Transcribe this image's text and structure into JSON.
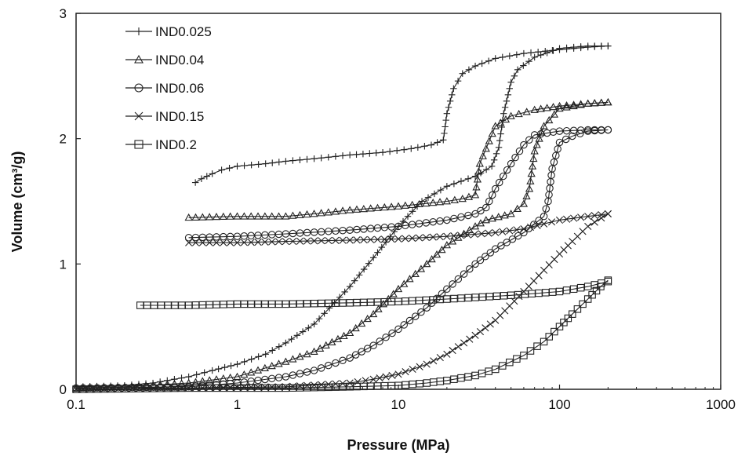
{
  "chart_data": {
    "type": "line",
    "xscale": "log",
    "xlim": [
      0.1,
      1000
    ],
    "ylim": [
      0,
      3
    ],
    "xticks": [
      "0.1",
      "1",
      "10",
      "100",
      "1000"
    ],
    "yticks": [
      "0",
      "1",
      "2",
      "3"
    ],
    "xlabel": "Pressure (MPa)",
    "ylabel": "Volume (cm³/g)",
    "legend_position": "top-left",
    "grid": false,
    "series": [
      {
        "name": "IND0.025",
        "marker": "plus",
        "intrusion": [
          [
            0.55,
            1.65
          ],
          [
            0.6,
            1.68
          ],
          [
            0.7,
            1.72
          ],
          [
            0.8,
            1.75
          ],
          [
            1,
            1.78
          ],
          [
            1.5,
            1.8
          ],
          [
            2,
            1.82
          ],
          [
            3,
            1.84
          ],
          [
            5,
            1.87
          ],
          [
            8,
            1.89
          ],
          [
            12,
            1.92
          ],
          [
            16,
            1.95
          ],
          [
            19,
            1.99
          ],
          [
            20,
            2.2
          ],
          [
            22,
            2.4
          ],
          [
            25,
            2.52
          ],
          [
            30,
            2.58
          ],
          [
            40,
            2.64
          ],
          [
            60,
            2.68
          ],
          [
            100,
            2.71
          ],
          [
            150,
            2.73
          ],
          [
            200,
            2.74
          ]
        ],
        "extrusion": [
          [
            200,
            2.74
          ],
          [
            150,
            2.74
          ],
          [
            100,
            2.72
          ],
          [
            70,
            2.65
          ],
          [
            55,
            2.55
          ],
          [
            50,
            2.45
          ],
          [
            45,
            2.2
          ],
          [
            42,
            1.93
          ],
          [
            38,
            1.78
          ],
          [
            30,
            1.7
          ],
          [
            20,
            1.62
          ],
          [
            14,
            1.5
          ],
          [
            10,
            1.3
          ],
          [
            7,
            1.05
          ],
          [
            5,
            0.82
          ],
          [
            3,
            0.52
          ],
          [
            2,
            0.37
          ],
          [
            1.5,
            0.28
          ],
          [
            1,
            0.2
          ],
          [
            0.7,
            0.15
          ],
          [
            0.5,
            0.1
          ],
          [
            0.3,
            0.05
          ],
          [
            0.2,
            0.03
          ],
          [
            0.1,
            0.02
          ]
        ]
      },
      {
        "name": "IND0.04",
        "marker": "triangle",
        "intrusion": [
          [
            0.5,
            1.37
          ],
          [
            1,
            1.38
          ],
          [
            2,
            1.38
          ],
          [
            3,
            1.4
          ],
          [
            5,
            1.43
          ],
          [
            10,
            1.46
          ],
          [
            20,
            1.5
          ],
          [
            25,
            1.52
          ],
          [
            30,
            1.55
          ],
          [
            32,
            1.8
          ],
          [
            35,
            1.92
          ],
          [
            40,
            2.1
          ],
          [
            50,
            2.18
          ],
          [
            70,
            2.23
          ],
          [
            100,
            2.26
          ],
          [
            150,
            2.28
          ],
          [
            200,
            2.29
          ]
        ],
        "extrusion": [
          [
            200,
            2.29
          ],
          [
            150,
            2.28
          ],
          [
            100,
            2.24
          ],
          [
            80,
            2.1
          ],
          [
            70,
            1.9
          ],
          [
            65,
            1.6
          ],
          [
            60,
            1.48
          ],
          [
            50,
            1.4
          ],
          [
            35,
            1.35
          ],
          [
            30,
            1.3
          ],
          [
            20,
            1.15
          ],
          [
            15,
            1.0
          ],
          [
            10,
            0.8
          ],
          [
            7,
            0.6
          ],
          [
            5,
            0.45
          ],
          [
            3,
            0.3
          ],
          [
            2,
            0.22
          ],
          [
            1,
            0.1
          ],
          [
            0.5,
            0.05
          ],
          [
            0.2,
            0.02
          ],
          [
            0.1,
            0.01
          ]
        ]
      },
      {
        "name": "IND0.06",
        "marker": "circle",
        "intrusion": [
          [
            0.5,
            1.21
          ],
          [
            1,
            1.22
          ],
          [
            2,
            1.24
          ],
          [
            5,
            1.27
          ],
          [
            10,
            1.3
          ],
          [
            20,
            1.35
          ],
          [
            30,
            1.4
          ],
          [
            35,
            1.45
          ],
          [
            40,
            1.6
          ],
          [
            50,
            1.8
          ],
          [
            60,
            1.95
          ],
          [
            70,
            2.03
          ],
          [
            100,
            2.06
          ],
          [
            150,
            2.07
          ],
          [
            200,
            2.07
          ]
        ],
        "extrusion": [
          [
            200,
            2.07
          ],
          [
            150,
            2.06
          ],
          [
            120,
            2.02
          ],
          [
            100,
            1.97
          ],
          [
            90,
            1.76
          ],
          [
            85,
            1.5
          ],
          [
            80,
            1.38
          ],
          [
            60,
            1.25
          ],
          [
            40,
            1.12
          ],
          [
            30,
            1.0
          ],
          [
            20,
            0.8
          ],
          [
            15,
            0.65
          ],
          [
            10,
            0.48
          ],
          [
            7,
            0.35
          ],
          [
            5,
            0.25
          ],
          [
            3,
            0.15
          ],
          [
            2,
            0.1
          ],
          [
            1,
            0.05
          ],
          [
            0.5,
            0.02
          ],
          [
            0.1,
            0.01
          ]
        ]
      },
      {
        "name": "IND0.15",
        "marker": "x",
        "intrusion": [
          [
            0.5,
            1.17
          ],
          [
            1,
            1.17
          ],
          [
            2,
            1.18
          ],
          [
            5,
            1.19
          ],
          [
            10,
            1.2
          ],
          [
            20,
            1.22
          ],
          [
            40,
            1.25
          ],
          [
            60,
            1.28
          ],
          [
            80,
            1.32
          ],
          [
            100,
            1.35
          ],
          [
            150,
            1.38
          ],
          [
            200,
            1.4
          ]
        ],
        "extrusion": [
          [
            200,
            1.4
          ],
          [
            150,
            1.3
          ],
          [
            120,
            1.18
          ],
          [
            100,
            1.08
          ],
          [
            80,
            0.95
          ],
          [
            60,
            0.78
          ],
          [
            40,
            0.55
          ],
          [
            30,
            0.43
          ],
          [
            20,
            0.28
          ],
          [
            15,
            0.2
          ],
          [
            10,
            0.12
          ],
          [
            7,
            0.08
          ],
          [
            5,
            0.05
          ],
          [
            2,
            0.02
          ],
          [
            0.5,
            0.01
          ],
          [
            0.1,
            0.0
          ]
        ]
      },
      {
        "name": "IND0.2",
        "marker": "square",
        "intrusion": [
          [
            0.25,
            0.67
          ],
          [
            0.5,
            0.67
          ],
          [
            1,
            0.68
          ],
          [
            2,
            0.68
          ],
          [
            5,
            0.69
          ],
          [
            10,
            0.7
          ],
          [
            20,
            0.72
          ],
          [
            50,
            0.75
          ],
          [
            100,
            0.78
          ],
          [
            150,
            0.82
          ],
          [
            200,
            0.86
          ]
        ],
        "extrusion": [
          [
            200,
            0.87
          ],
          [
            180,
            0.82
          ],
          [
            150,
            0.72
          ],
          [
            120,
            0.6
          ],
          [
            100,
            0.5
          ],
          [
            80,
            0.38
          ],
          [
            60,
            0.27
          ],
          [
            40,
            0.16
          ],
          [
            30,
            0.11
          ],
          [
            20,
            0.07
          ],
          [
            15,
            0.05
          ],
          [
            10,
            0.03
          ],
          [
            5,
            0.02
          ],
          [
            2,
            0.01
          ],
          [
            0.5,
            0.01
          ],
          [
            0.1,
            0.0
          ]
        ]
      }
    ]
  }
}
